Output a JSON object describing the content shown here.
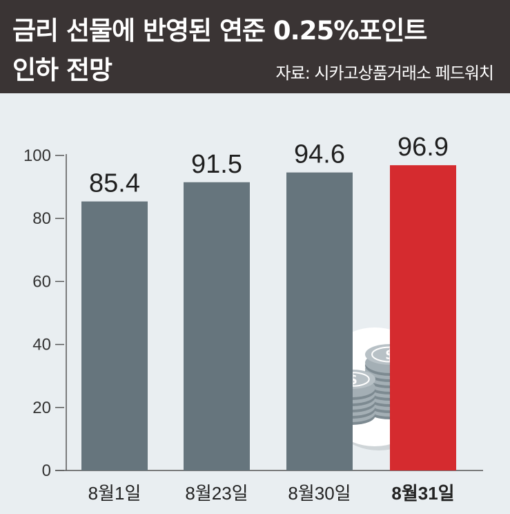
{
  "header": {
    "title_line1": "금리 선물에 반영된 연준 0.25%포인트",
    "title_line2": "인하 전망",
    "source": "자료: 시카고상품거래소 페드워치"
  },
  "colors": {
    "header_bg": "#3a3434",
    "background": "#e9eef1",
    "bar_default": "#66757d",
    "bar_highlight": "#d52b2f",
    "highlight_text": "#d52b2f"
  },
  "illustration": {
    "icon": "coin-stack-icon"
  },
  "chart_data": {
    "type": "bar",
    "categories": [
      "8월1일",
      "8월23일",
      "8월30일",
      "8월31일"
    ],
    "values": [
      85.4,
      91.5,
      94.6,
      96.9
    ],
    "value_labels": [
      "85.4",
      "91.5",
      "94.6",
      "96.9"
    ],
    "highlight_index": 3,
    "ylim": [
      0,
      100
    ],
    "yticks": [
      0,
      20,
      40,
      60,
      80,
      100
    ],
    "ytick_labels": [
      "0",
      "20",
      "40",
      "60",
      "80",
      "100"
    ],
    "grid": false,
    "title": "금리 선물에 반영된 연준 0.25%포인트 인하 전망",
    "xlabel": "",
    "ylabel": ""
  }
}
